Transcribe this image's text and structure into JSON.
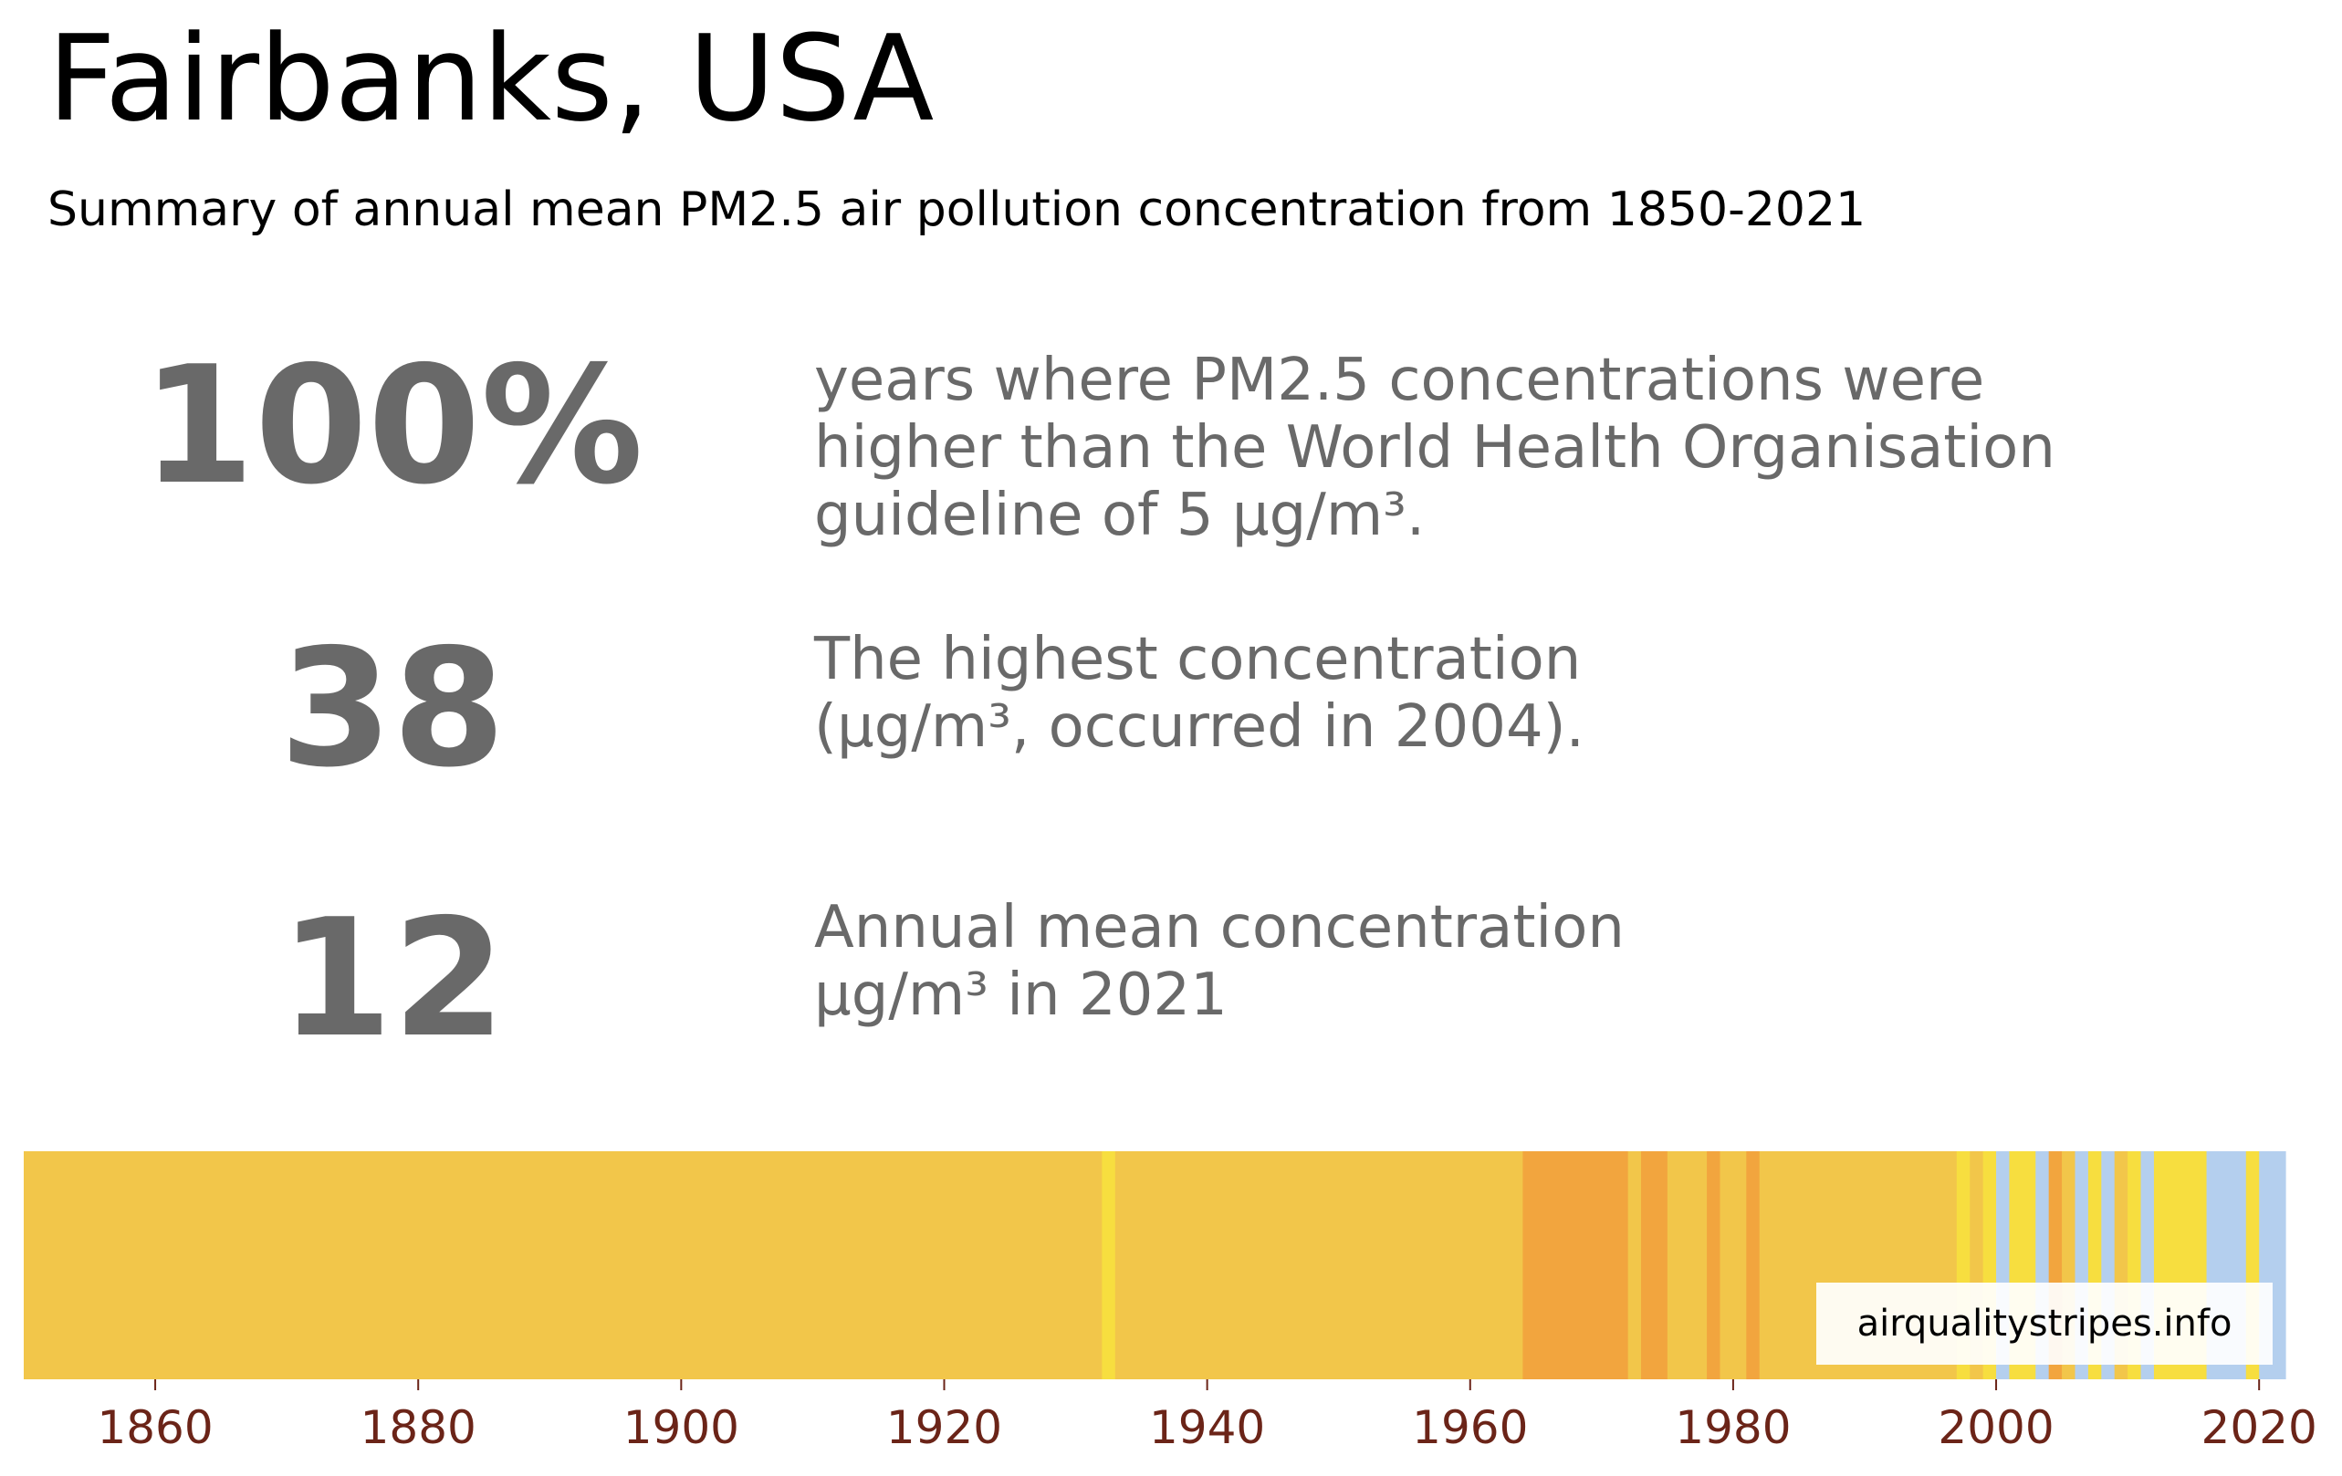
{
  "header": {
    "title": "Fairbanks, USA",
    "subtitle": "Summary of annual mean PM2.5 air pollution concentration from 1850-2021"
  },
  "stats": [
    {
      "value": "100%",
      "description": "years where PM2.5 concentrations were\nhigher than the World Health Organisation\nguideline of 5 µg/m³."
    },
    {
      "value": "38",
      "description": "The highest concentration\n(µg/m³, occurred in 2004)."
    },
    {
      "value": "12",
      "description": "Annual mean concentration\nµg/m³ in 2021"
    }
  ],
  "watermark": "airqualitystripes.info",
  "colors": {
    "text_gray": "#696969",
    "tick_color": "#6b2418",
    "band_yellow_orange": "#f2c64a",
    "band_yellow": "#f7de3f",
    "band_orange": "#f2a53e",
    "band_light_blue": "#b4cfee"
  },
  "chart_data": {
    "type": "heatmap",
    "description_of_encoding": "warming-stripes style: one vertical stripe per year, colored by annual mean PM2.5 category",
    "x_ticks": [
      "1860",
      "1880",
      "1900",
      "1920",
      "1940",
      "1960",
      "1980",
      "2000",
      "2020"
    ],
    "xlim": [
      1850,
      2022
    ],
    "segments": [
      {
        "start": 1850,
        "end": 1932,
        "color": "#f2c64a"
      },
      {
        "start": 1932,
        "end": 1933,
        "color": "#f7de3f"
      },
      {
        "start": 1933,
        "end": 1964,
        "color": "#f2c64a"
      },
      {
        "start": 1964,
        "end": 1972,
        "color": "#f2a53e"
      },
      {
        "start": 1972,
        "end": 1973,
        "color": "#f2c64a"
      },
      {
        "start": 1973,
        "end": 1975,
        "color": "#f2a53e"
      },
      {
        "start": 1975,
        "end": 1978,
        "color": "#f2c64a"
      },
      {
        "start": 1978,
        "end": 1979,
        "color": "#f2a53e"
      },
      {
        "start": 1979,
        "end": 1981,
        "color": "#f2c64a"
      },
      {
        "start": 1981,
        "end": 1982,
        "color": "#f2a53e"
      },
      {
        "start": 1982,
        "end": 1997,
        "color": "#f2c64a"
      },
      {
        "start": 1997,
        "end": 1998,
        "color": "#f7de3f"
      },
      {
        "start": 1998,
        "end": 1999,
        "color": "#f2c64a"
      },
      {
        "start": 1999,
        "end": 2000,
        "color": "#f7de3f"
      },
      {
        "start": 2000,
        "end": 2001,
        "color": "#b4cfee"
      },
      {
        "start": 2001,
        "end": 2003,
        "color": "#f7de3f"
      },
      {
        "start": 2003,
        "end": 2004,
        "color": "#b4cfee"
      },
      {
        "start": 2004,
        "end": 2005,
        "color": "#f2a53e"
      },
      {
        "start": 2005,
        "end": 2006,
        "color": "#f2c64a"
      },
      {
        "start": 2006,
        "end": 2007,
        "color": "#b4cfee"
      },
      {
        "start": 2007,
        "end": 2008,
        "color": "#f7de3f"
      },
      {
        "start": 2008,
        "end": 2009,
        "color": "#b4cfee"
      },
      {
        "start": 2009,
        "end": 2010,
        "color": "#f2c64a"
      },
      {
        "start": 2010,
        "end": 2011,
        "color": "#f7de3f"
      },
      {
        "start": 2011,
        "end": 2012,
        "color": "#b4cfee"
      },
      {
        "start": 2012,
        "end": 2016,
        "color": "#f7de3f"
      },
      {
        "start": 2016,
        "end": 2019,
        "color": "#b4cfee"
      },
      {
        "start": 2019,
        "end": 2020,
        "color": "#f7de3f"
      },
      {
        "start": 2020,
        "end": 2022,
        "color": "#b4cfee"
      }
    ]
  }
}
